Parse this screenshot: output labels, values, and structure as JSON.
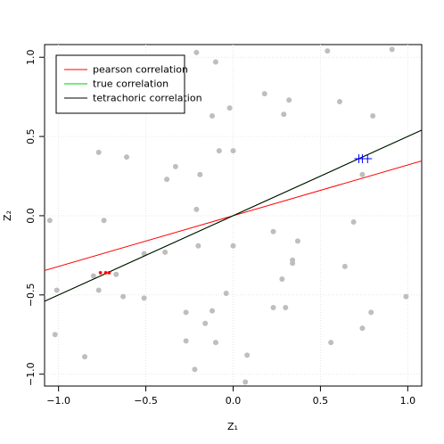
{
  "chart_data": {
    "type": "scatter",
    "xlabel": "Z₁",
    "ylabel": "Z₂",
    "xlim": [
      -1.08,
      1.08
    ],
    "ylim": [
      -1.075,
      1.08
    ],
    "xticks": [
      {
        "value": -1,
        "label": "−1.0"
      },
      {
        "value": -0.5,
        "label": "−0.5"
      },
      {
        "value": 0,
        "label": "0.0"
      },
      0.5,
      {
        "value": 1,
        "label": "1.0"
      }
    ],
    "yticks": [
      {
        "value": -1,
        "label": "−1.0"
      },
      {
        "value": -0.5,
        "label": "−0.5"
      },
      {
        "value": 0,
        "label": "0.0"
      },
      0.5,
      {
        "value": 1,
        "label": "1.0"
      }
    ],
    "grid": true,
    "legend": "top-left",
    "points": {
      "color": "#bebebe",
      "x": [
        -0.21,
        0.91,
        0.54,
        -0.1,
        0.18,
        0.32,
        0.61,
        -0.02,
        0.29,
        -0.12,
        0.8,
        -0.08,
        0.0,
        -0.77,
        -0.61,
        -0.33,
        -0.19,
        -0.38,
        0.74,
        -0.21,
        -1.05,
        -0.74,
        0.69,
        0.23,
        0.0,
        -0.2,
        0.37,
        -0.51,
        -0.39,
        0.34,
        0.34,
        0.64,
        -0.8,
        -0.67,
        0.28,
        -1.01,
        -0.77,
        -0.04,
        -0.63,
        -0.51,
        0.99,
        0.23,
        0.3,
        -0.12,
        -0.27,
        0.79,
        -0.16,
        0.74,
        -1.02,
        -0.27,
        -0.1,
        0.56,
        -0.85,
        0.08,
        -0.22,
        0.07
      ],
      "y": [
        1.03,
        1.05,
        1.04,
        0.97,
        0.77,
        0.73,
        0.72,
        0.68,
        0.64,
        0.63,
        0.63,
        0.41,
        0.41,
        0.4,
        0.37,
        0.31,
        0.26,
        0.23,
        0.26,
        0.04,
        -0.03,
        -0.03,
        -0.04,
        -0.1,
        -0.19,
        -0.19,
        -0.16,
        -0.24,
        -0.23,
        -0.28,
        -0.3,
        -0.32,
        -0.38,
        -0.37,
        -0.4,
        -0.47,
        -0.47,
        -0.49,
        -0.51,
        -0.52,
        -0.51,
        -0.58,
        -0.58,
        -0.6,
        -0.61,
        -0.61,
        -0.68,
        -0.71,
        -0.75,
        -0.79,
        -0.8,
        -0.8,
        -0.89,
        -0.88,
        -0.97,
        -1.05
      ]
    },
    "marks": [
      {
        "color": "#ff0000",
        "symbol": "*",
        "x": [
          -0.76,
          -0.73,
          -0.71
        ],
        "y": [
          -0.36,
          -0.36,
          -0.36
        ]
      },
      {
        "color": "#0000ff",
        "symbol": "+",
        "x": [
          0.72,
          0.74,
          0.77
        ],
        "y": [
          0.36,
          0.36,
          0.36
        ]
      }
    ],
    "lines": [
      {
        "name": "pearson correlation",
        "color": "#ff0000",
        "slope": 0.32
      },
      {
        "name": "true correlation",
        "color": "#00cc00",
        "slope": 0.5
      },
      {
        "name": "tetrachoric correlation",
        "color": "#000000",
        "slope": 0.5
      }
    ]
  }
}
